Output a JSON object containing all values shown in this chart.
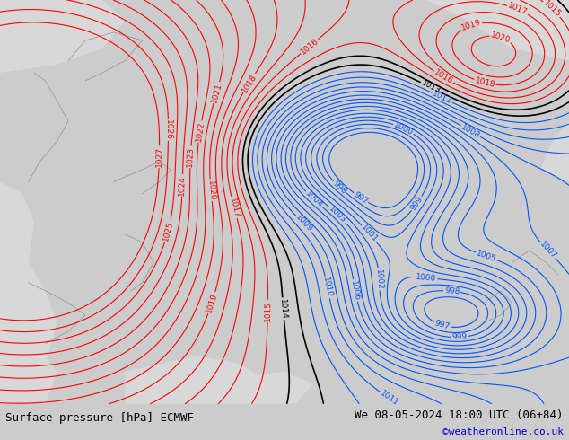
{
  "title_left": "Surface pressure [hPa] ECMWF",
  "title_right": "We 08-05-2024 18:00 UTC (06+84)",
  "title_right2": "©weatheronline.co.uk",
  "footer_bg": "#cccccc",
  "land_color": "#c8e8a0",
  "sea_color": "#d8d8d8",
  "red_contour_color": "#ff0000",
  "blue_contour_color": "#0055ff",
  "black_contour_color": "#000000",
  "label_fontsize": 6.5,
  "footer_fontsize": 9,
  "footer_color": "#000000",
  "watermark_color": "#0000cc",
  "red_levels": [
    1015,
    1016,
    1017,
    1018,
    1019,
    1020,
    1021,
    1022,
    1023,
    1024,
    1025,
    1026,
    1027
  ],
  "blue_levels": [
    997,
    998,
    999,
    1000,
    1001,
    1002,
    1003,
    1004,
    1005,
    1006,
    1007,
    1008,
    1009,
    1010,
    1011,
    1012
  ],
  "black_levels": [
    1013,
    1014
  ]
}
